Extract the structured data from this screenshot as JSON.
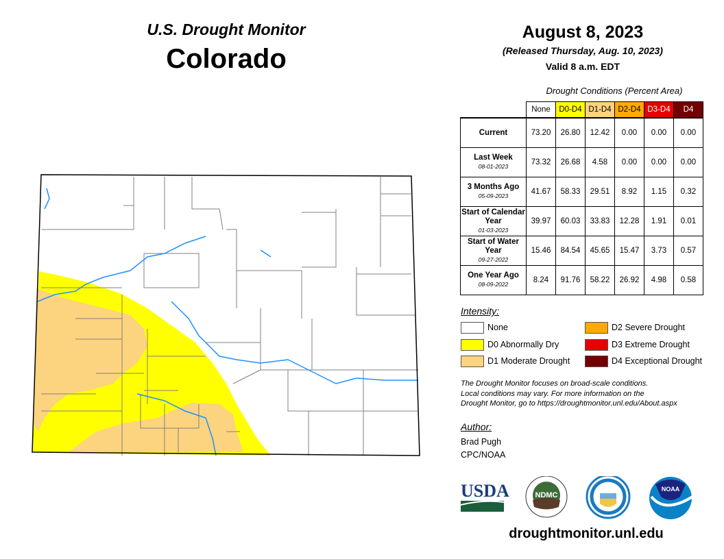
{
  "title": "U.S. Drought Monitor",
  "state": "Colorado",
  "date": "August 8, 2023",
  "released": "(Released Thursday, Aug. 10, 2023)",
  "valid": "Valid 8 a.m. EDT",
  "table": {
    "caption": "Drought Conditions (Percent Area)",
    "columns": [
      "None",
      "D0-D4",
      "D1-D4",
      "D2-D4",
      "D3-D4",
      "D4"
    ],
    "rows": [
      {
        "label": "Current",
        "date": "",
        "values": [
          "73.20",
          "26.80",
          "12.42",
          "0.00",
          "0.00",
          "0.00"
        ]
      },
      {
        "label": "Last Week",
        "date": "08-01-2023",
        "values": [
          "73.32",
          "26.68",
          "4.58",
          "0.00",
          "0.00",
          "0.00"
        ]
      },
      {
        "label": "3 Months Ago",
        "date": "05-09-2023",
        "values": [
          "41.67",
          "58.33",
          "29.51",
          "8.92",
          "1.15",
          "0.32"
        ]
      },
      {
        "label": "Start of Calendar Year",
        "date": "01-03-2023",
        "values": [
          "39.97",
          "60.03",
          "33.83",
          "12.28",
          "1.91",
          "0.01"
        ]
      },
      {
        "label": "Start of Water Year",
        "date": "09-27-2022",
        "values": [
          "15.46",
          "84.54",
          "45.65",
          "15.47",
          "3.73",
          "0.57"
        ]
      },
      {
        "label": "One Year Ago",
        "date": "08-09-2022",
        "values": [
          "8.24",
          "91.76",
          "58.22",
          "26.92",
          "4.98",
          "0.58"
        ]
      }
    ]
  },
  "legend": {
    "title": "Intensity:",
    "items": [
      {
        "label": "None",
        "color": "#ffffff"
      },
      {
        "label": "D0 Abnormally Dry",
        "color": "#ffff00"
      },
      {
        "label": "D1 Moderate Drought",
        "color": "#fcd37f"
      },
      {
        "label": "D2 Severe Drought",
        "color": "#ffaa00"
      },
      {
        "label": "D3 Extreme Drought",
        "color": "#e60000"
      },
      {
        "label": "D4 Exceptional Drought",
        "color": "#730000"
      }
    ]
  },
  "note": [
    "The Drought Monitor focuses on broad-scale conditions.",
    "Local conditions may vary. For more information on the",
    "Drought Monitor, go to https://droughtmonitor.unl.edu/About.aspx"
  ],
  "author": {
    "label": "Author:",
    "name": "Brad Pugh",
    "org": "CPC/NOAA"
  },
  "logos": {
    "usda": "USDA",
    "ndmc": "NDMC",
    "noaa": "NOAA"
  },
  "url": "droughtmonitor.unl.edu",
  "colors": {
    "river": "#1e90ff",
    "county": "#808080"
  }
}
